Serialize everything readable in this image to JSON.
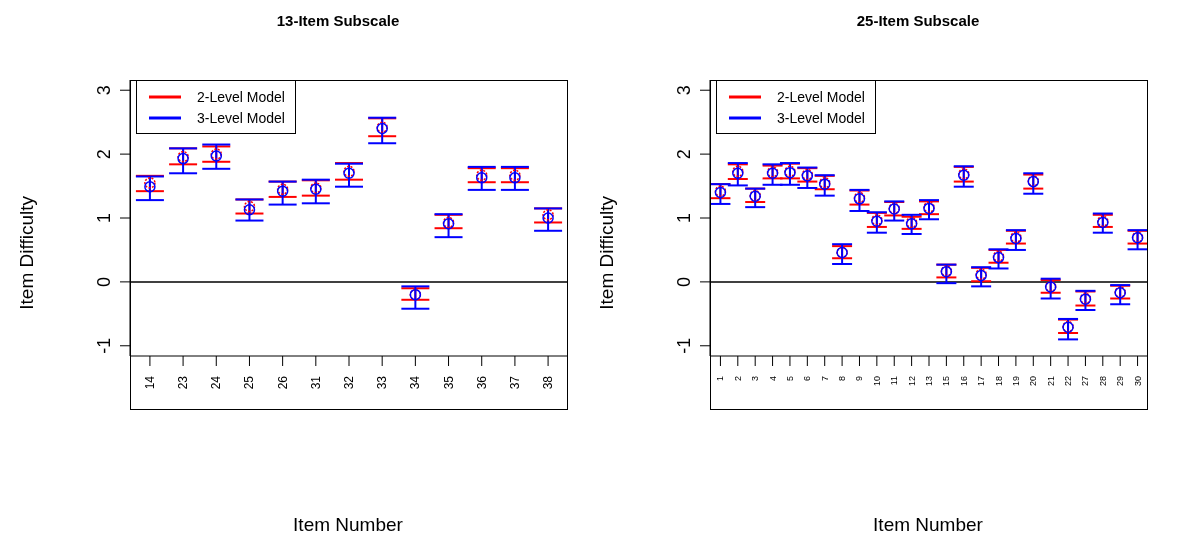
{
  "chart_data": [
    {
      "type": "scatter",
      "title": "13-Item Subscale",
      "xlabel": "Item Number",
      "ylabel": "Item Difficulty",
      "categories": [
        "14",
        "23",
        "24",
        "25",
        "26",
        "31",
        "32",
        "33",
        "34",
        "35",
        "36",
        "37",
        "38"
      ],
      "series": [
        {
          "name": "2-Level Model",
          "color": "#ff0000",
          "values": [
            1.55,
            1.96,
            2.0,
            1.18,
            1.45,
            1.47,
            1.73,
            2.42,
            -0.2,
            0.93,
            1.67,
            1.67,
            1.05
          ],
          "errors": [
            [
              1.42,
              1.66
            ],
            [
              1.84,
              2.09
            ],
            [
              1.88,
              2.12
            ],
            [
              1.07,
              1.29
            ],
            [
              1.33,
              1.57
            ],
            [
              1.35,
              1.59
            ],
            [
              1.6,
              1.86
            ],
            [
              2.28,
              2.56
            ],
            [
              -0.28,
              -0.1
            ],
            [
              0.84,
              1.05
            ],
            [
              1.56,
              1.78
            ],
            [
              1.56,
              1.78
            ],
            [
              0.93,
              1.15
            ]
          ]
        },
        {
          "name": "3-Level Model",
          "color": "#0000ff",
          "values": [
            1.49,
            1.93,
            1.97,
            1.13,
            1.42,
            1.45,
            1.7,
            2.4,
            -0.2,
            0.91,
            1.63,
            1.63,
            1.0
          ],
          "errors": [
            [
              1.28,
              1.65
            ],
            [
              1.7,
              2.09
            ],
            [
              1.77,
              2.15
            ],
            [
              0.96,
              1.29
            ],
            [
              1.21,
              1.57
            ],
            [
              1.23,
              1.6
            ],
            [
              1.49,
              1.85
            ],
            [
              2.17,
              2.57
            ],
            [
              -0.42,
              -0.07
            ],
            [
              0.7,
              1.06
            ],
            [
              1.44,
              1.8
            ],
            [
              1.44,
              1.8
            ],
            [
              0.8,
              1.15
            ]
          ]
        }
      ],
      "ylim": [
        -1.16,
        3.16
      ],
      "yticks": [
        -1,
        0,
        1,
        2,
        3
      ],
      "ref_lines": [
        {
          "axis": "y",
          "value": 0,
          "color": "#000000"
        }
      ],
      "legend": "top left",
      "marker": "circle",
      "grid": false
    },
    {
      "type": "scatter",
      "title": "25-Item Subscale",
      "xlabel": "Item Number",
      "ylabel": "Item Difficulty",
      "categories": [
        "1",
        "2",
        "3",
        "4",
        "5",
        "6",
        "7",
        "8",
        "9",
        "10",
        "11",
        "12",
        "13",
        "15",
        "16",
        "17",
        "18",
        "19",
        "20",
        "21",
        "22",
        "27",
        "28",
        "29",
        "30"
      ],
      "series": [
        {
          "name": "2-Level Model",
          "color": "#ff0000",
          "values": [
            1.42,
            1.73,
            1.35,
            1.72,
            1.73,
            1.68,
            1.55,
            0.46,
            1.32,
            0.97,
            1.15,
            0.93,
            1.17,
            0.17,
            1.69,
            0.12,
            0.4,
            0.7,
            1.58,
            -0.07,
            -0.7,
            -0.26,
            0.95,
            -0.16,
            0.7
          ],
          "errors": [
            [
              1.31,
              1.53
            ],
            [
              1.61,
              1.84
            ],
            [
              1.25,
              1.46
            ],
            [
              1.62,
              1.82
            ],
            [
              1.62,
              1.85
            ],
            [
              1.57,
              1.78
            ],
            [
              1.45,
              1.66
            ],
            [
              0.37,
              0.56
            ],
            [
              1.21,
              1.43
            ],
            [
              0.86,
              1.08
            ],
            [
              1.04,
              1.25
            ],
            [
              0.83,
              1.02
            ],
            [
              1.06,
              1.26
            ],
            [
              0.07,
              0.27
            ],
            [
              1.57,
              1.8
            ],
            [
              0.01,
              0.22
            ],
            [
              0.3,
              0.5
            ],
            [
              0.6,
              0.8
            ],
            [
              1.46,
              1.68
            ],
            [
              -0.17,
              0.03
            ],
            [
              -0.8,
              -0.59
            ],
            [
              -0.37,
              -0.15
            ],
            [
              0.86,
              1.05
            ],
            [
              -0.26,
              -0.06
            ],
            [
              0.6,
              0.8
            ]
          ]
        },
        {
          "name": "3-Level Model",
          "color": "#0000ff",
          "values": [
            1.4,
            1.7,
            1.34,
            1.7,
            1.71,
            1.66,
            1.53,
            0.46,
            1.3,
            0.95,
            1.14,
            0.91,
            1.15,
            0.16,
            1.67,
            0.1,
            0.38,
            0.68,
            1.57,
            -0.08,
            -0.71,
            -0.27,
            0.93,
            -0.17,
            0.69
          ],
          "errors": [
            [
              1.22,
              1.53
            ],
            [
              1.51,
              1.86
            ],
            [
              1.17,
              1.46
            ],
            [
              1.52,
              1.84
            ],
            [
              1.52,
              1.86
            ],
            [
              1.47,
              1.79
            ],
            [
              1.35,
              1.67
            ],
            [
              0.28,
              0.59
            ],
            [
              1.11,
              1.44
            ],
            [
              0.77,
              1.09
            ],
            [
              0.96,
              1.26
            ],
            [
              0.75,
              1.05
            ],
            [
              0.98,
              1.28
            ],
            [
              -0.02,
              0.27
            ],
            [
              1.49,
              1.81
            ],
            [
              -0.07,
              0.23
            ],
            [
              0.21,
              0.51
            ],
            [
              0.5,
              0.81
            ],
            [
              1.38,
              1.7
            ],
            [
              -0.26,
              0.05
            ],
            [
              -0.9,
              -0.58
            ],
            [
              -0.44,
              -0.14
            ],
            [
              0.77,
              1.07
            ],
            [
              -0.35,
              -0.05
            ],
            [
              0.51,
              0.81
            ]
          ]
        }
      ],
      "ylim": [
        -1.16,
        3.16
      ],
      "yticks": [
        -1,
        0,
        1,
        2,
        3
      ],
      "ref_lines": [
        {
          "axis": "y",
          "value": 0,
          "color": "#000000"
        }
      ],
      "legend": "top left",
      "marker": "circle",
      "grid": false
    }
  ]
}
